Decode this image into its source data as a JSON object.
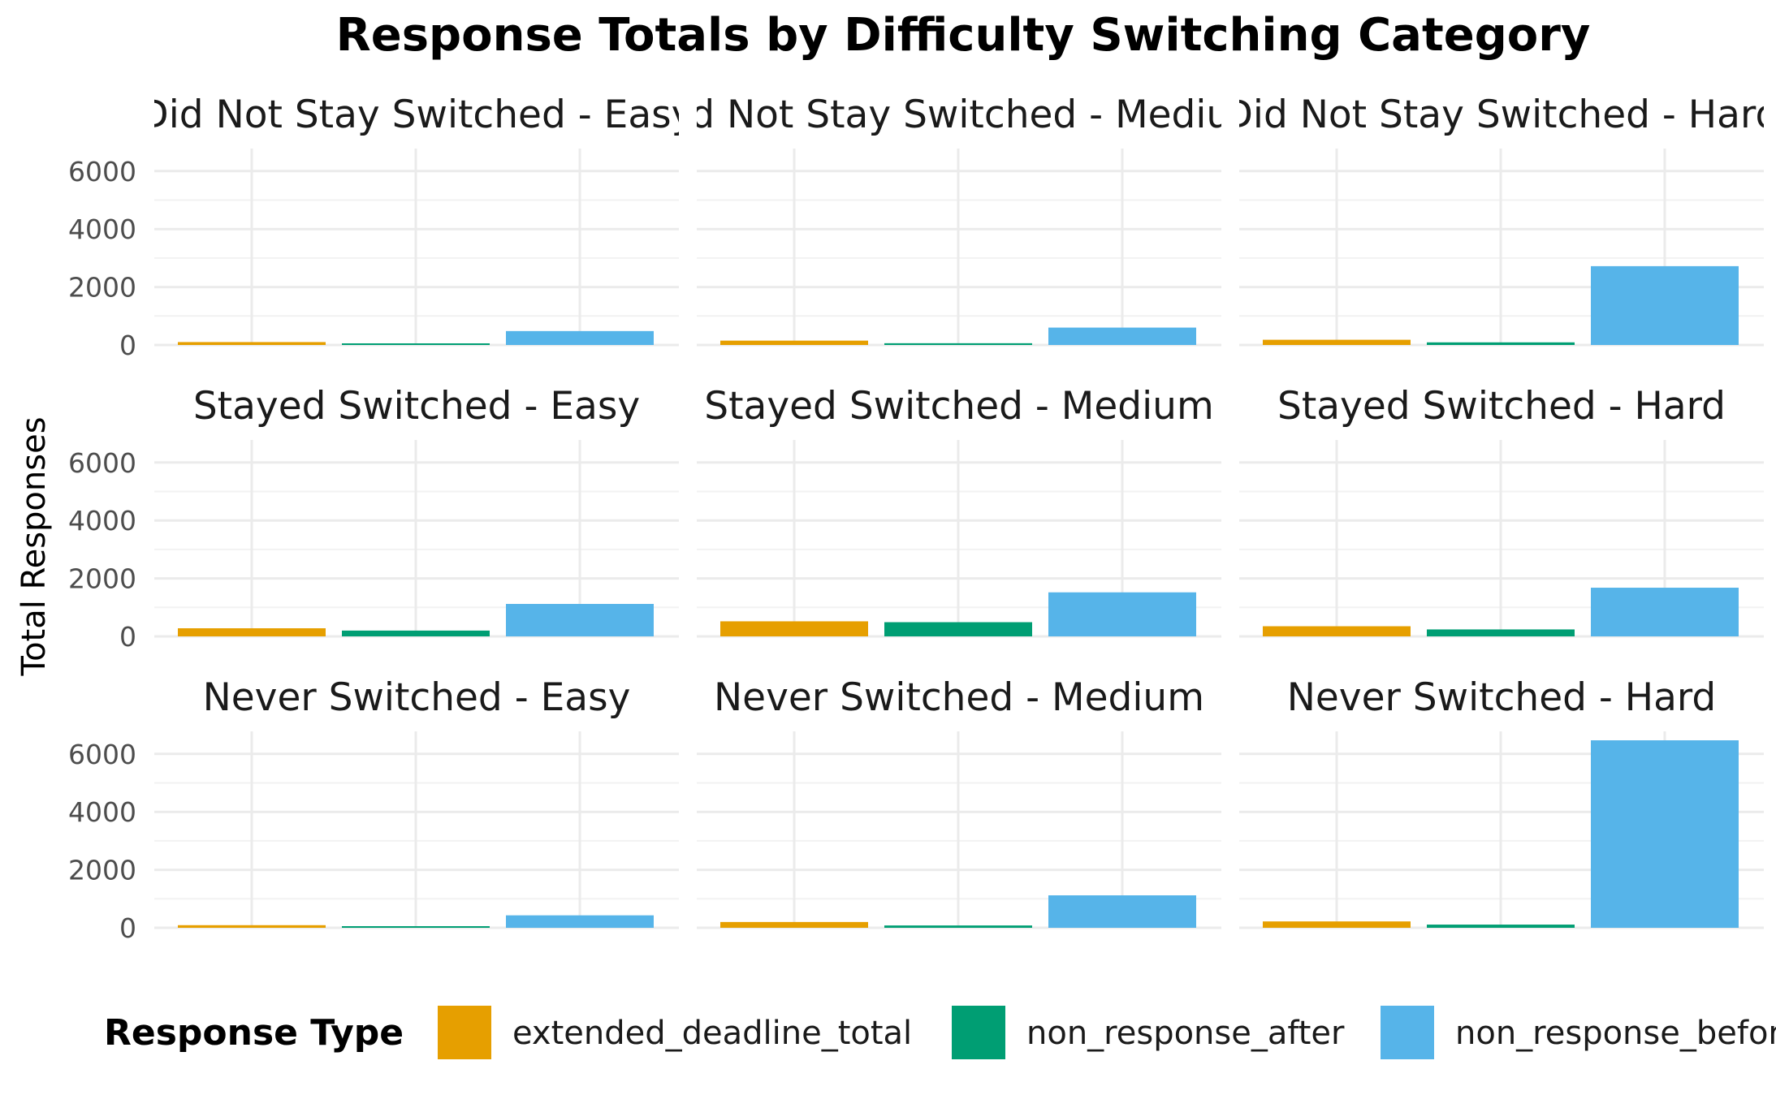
{
  "chart_data": {
    "type": "bar",
    "title": "Response Totals by Difficulty Switching Category",
    "xlabel": "",
    "ylabel": "Total Responses",
    "ylim": [
      0,
      6800
    ],
    "yticks": [
      0,
      2000,
      4000,
      6000
    ],
    "ytick_labels": [
      "0",
      "2000",
      "4000",
      "6000"
    ],
    "grid": true,
    "legend": {
      "title": "Response Type",
      "placement": "bottom",
      "entries": [
        "extended_deadline_total",
        "non_response_after",
        "non_response_before"
      ]
    },
    "series_colors": {
      "extended_deadline_total": "#E69F00",
      "non_response_after": "#009E73",
      "non_response_before": "#56B4E9"
    },
    "categories": [
      "extended_deadline_total",
      "non_response_after",
      "non_response_before"
    ],
    "panels": [
      {
        "label": "Did Not Stay Switched - Easy",
        "values": [
          100,
          30,
          480
        ]
      },
      {
        "label": "Did Not Stay Switched - Medium",
        "values": [
          150,
          60,
          600
        ]
      },
      {
        "label": "Did Not Stay Switched - Hard",
        "values": [
          180,
          90,
          2720
        ]
      },
      {
        "label": "Stayed Switched - Easy",
        "values": [
          280,
          200,
          1120
        ]
      },
      {
        "label": "Stayed Switched - Medium",
        "values": [
          520,
          490,
          1520
        ]
      },
      {
        "label": "Stayed Switched - Hard",
        "values": [
          350,
          240,
          1680
        ]
      },
      {
        "label": "Never Switched - Easy",
        "values": [
          90,
          30,
          430
        ]
      },
      {
        "label": "Never Switched - Medium",
        "values": [
          200,
          80,
          1120
        ]
      },
      {
        "label": "Never Switched - Hard",
        "values": [
          220,
          110,
          6470
        ]
      }
    ]
  }
}
